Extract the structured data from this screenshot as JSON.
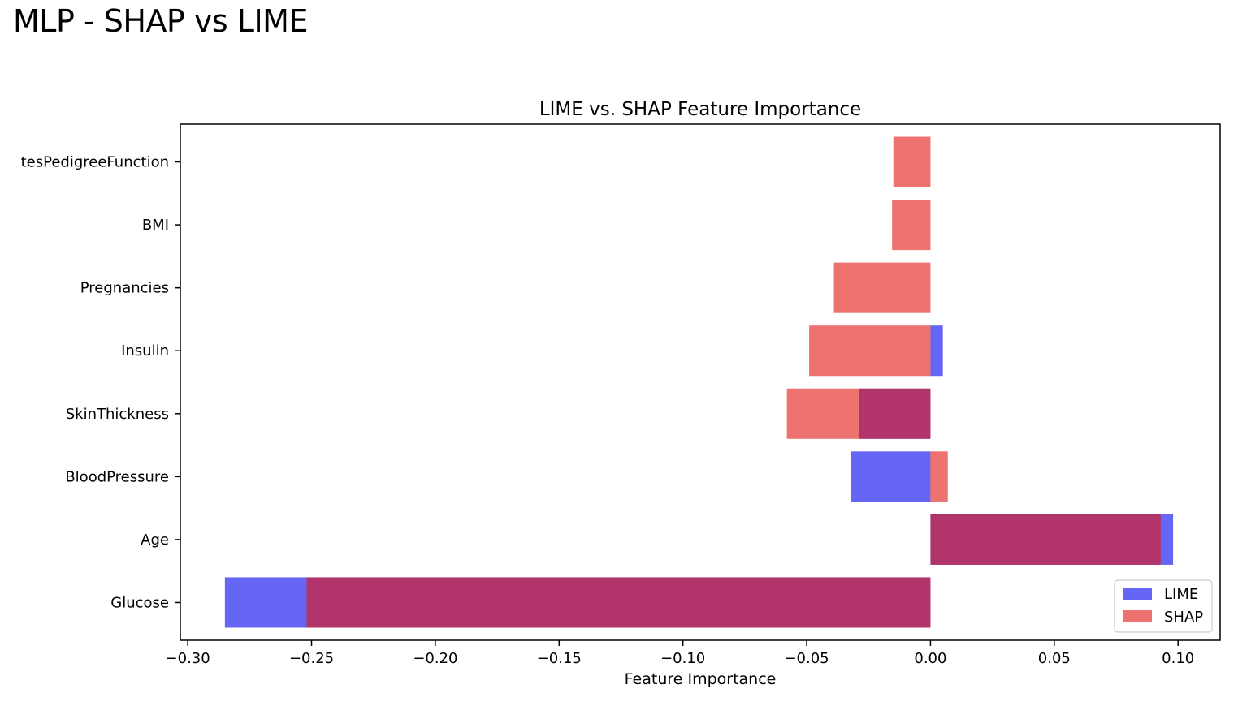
{
  "slide": {
    "title": "MLP - SHAP vs LIME"
  },
  "chart_data": {
    "type": "bar",
    "orientation": "horizontal",
    "title": "LIME vs. SHAP Feature Importance",
    "xlabel": "Feature Importance",
    "ylabel": "",
    "xlim": [
      -0.303,
      0.117
    ],
    "xticks": [
      -0.3,
      -0.25,
      -0.2,
      -0.15,
      -0.1,
      -0.05,
      0.0,
      0.05,
      0.1
    ],
    "xtick_labels": [
      "−0.30",
      "−0.25",
      "−0.20",
      "−0.15",
      "−0.10",
      "−0.05",
      "0.00",
      "0.05",
      "0.10"
    ],
    "categories": [
      "tesPedigreeFunction",
      "BMI",
      "Pregnancies",
      "Insulin",
      "SkinThickness",
      "BloodPressure",
      "Age",
      "Glucose"
    ],
    "series": [
      {
        "name": "LIME",
        "color": "#0000ee",
        "alpha": 0.6,
        "values": [
          0.0,
          0.0,
          0.0,
          0.005,
          -0.029,
          -0.032,
          0.098,
          -0.285
        ]
      },
      {
        "name": "SHAP",
        "color": "#e3140f",
        "alpha": 0.6,
        "values": [
          -0.015,
          -0.0155,
          -0.039,
          -0.049,
          -0.058,
          0.007,
          0.093,
          -0.252
        ]
      }
    ],
    "legend": {
      "position": "lower right"
    },
    "grid": false
  }
}
